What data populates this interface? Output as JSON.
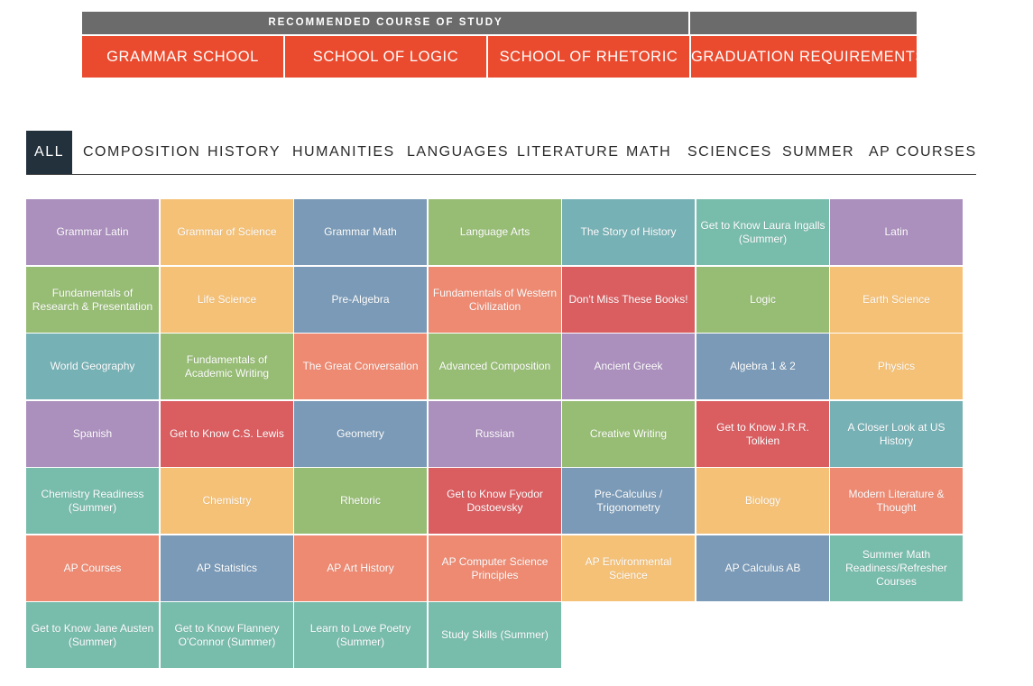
{
  "header": {
    "title": "RECOMMENDED COURSE OF STUDY",
    "schools": [
      {
        "label": "GRAMMAR SCHOOL"
      },
      {
        "label": "SCHOOL OF LOGIC"
      },
      {
        "label": "SCHOOL OF RHETORIC"
      },
      {
        "label": "GRADUATION REQUIREMENTS"
      }
    ]
  },
  "tabs": [
    {
      "label": "ALL"
    },
    {
      "label": "COMPOSITION"
    },
    {
      "label": "HISTORY"
    },
    {
      "label": "HUMANITIES"
    },
    {
      "label": "LANGUAGES"
    },
    {
      "label": "LITERATURE"
    },
    {
      "label": "MATH"
    },
    {
      "label": "SCIENCES"
    },
    {
      "label": "SUMMER"
    },
    {
      "label": "AP COURSES"
    }
  ],
  "active_tab": "ALL",
  "colors": {
    "purple": "#ab8fbd",
    "yellow": "#f5c177",
    "blue": "#7a9ab7",
    "green": "#97bd75",
    "teal": "#76b1b5",
    "mint": "#78bcac",
    "salmon": "#ee8a72",
    "red": "#da5d60",
    "header_gray": "#6b6b6b",
    "header_red": "#ea4a2d",
    "tab_active": "#23313d"
  },
  "courses": [
    {
      "label": "Grammar Latin",
      "color": "purple"
    },
    {
      "label": "Grammar of Science",
      "color": "yellow"
    },
    {
      "label": "Grammar Math",
      "color": "blue"
    },
    {
      "label": "Language Arts",
      "color": "green"
    },
    {
      "label": "The Story of History",
      "color": "teal"
    },
    {
      "label": "Get to Know Laura Ingalls (Summer)",
      "color": "mint"
    },
    {
      "label": "Latin",
      "color": "purple"
    },
    {
      "label": "Fundamentals of Research & Presentation",
      "color": "green"
    },
    {
      "label": "Life Science",
      "color": "yellow"
    },
    {
      "label": "Pre-Algebra",
      "color": "blue"
    },
    {
      "label": "Fundamentals of Western Civilization",
      "color": "salmon"
    },
    {
      "label": "Don't Miss These Books!",
      "color": "red"
    },
    {
      "label": "Logic",
      "color": "green"
    },
    {
      "label": "Earth Science",
      "color": "yellow"
    },
    {
      "label": "World Geography",
      "color": "teal"
    },
    {
      "label": "Fundamentals of Academic Writing",
      "color": "green"
    },
    {
      "label": "The Great Conversation",
      "color": "salmon"
    },
    {
      "label": "Advanced Composition",
      "color": "green"
    },
    {
      "label": "Ancient Greek",
      "color": "purple"
    },
    {
      "label": "Algebra 1 & 2",
      "color": "blue"
    },
    {
      "label": "Physics",
      "color": "yellow"
    },
    {
      "label": "Spanish",
      "color": "purple"
    },
    {
      "label": "Get to Know C.S. Lewis",
      "color": "red"
    },
    {
      "label": "Geometry",
      "color": "blue"
    },
    {
      "label": "Russian",
      "color": "purple"
    },
    {
      "label": "Creative Writing",
      "color": "green"
    },
    {
      "label": "Get to Know J.R.R. Tolkien",
      "color": "red"
    },
    {
      "label": "A Closer Look at US History",
      "color": "teal"
    },
    {
      "label": "Chemistry Readiness (Summer)",
      "color": "mint"
    },
    {
      "label": "Chemistry",
      "color": "yellow"
    },
    {
      "label": "Rhetoric",
      "color": "green"
    },
    {
      "label": "Get to Know Fyodor Dostoevsky",
      "color": "red"
    },
    {
      "label": "Pre-Calculus / Trigonometry",
      "color": "blue"
    },
    {
      "label": "Biology",
      "color": "yellow"
    },
    {
      "label": "Modern Literature & Thought",
      "color": "salmon"
    },
    {
      "label": "AP Courses",
      "color": "salmon"
    },
    {
      "label": "AP Statistics",
      "color": "blue"
    },
    {
      "label": "AP Art History",
      "color": "salmon"
    },
    {
      "label": "AP Computer Science Principles",
      "color": "salmon"
    },
    {
      "label": "AP Environmental Science",
      "color": "yellow"
    },
    {
      "label": "AP Calculus AB",
      "color": "blue"
    },
    {
      "label": "Summer Math Readiness/Refresher Courses",
      "color": "mint"
    },
    {
      "label": "Get to Know Jane Austen (Summer)",
      "color": "mint"
    },
    {
      "label": "Get to Know Flannery O'Connor (Summer)",
      "color": "mint"
    },
    {
      "label": "Learn to Love Poetry (Summer)",
      "color": "mint"
    },
    {
      "label": "Study Skills (Summer)",
      "color": "mint"
    }
  ]
}
